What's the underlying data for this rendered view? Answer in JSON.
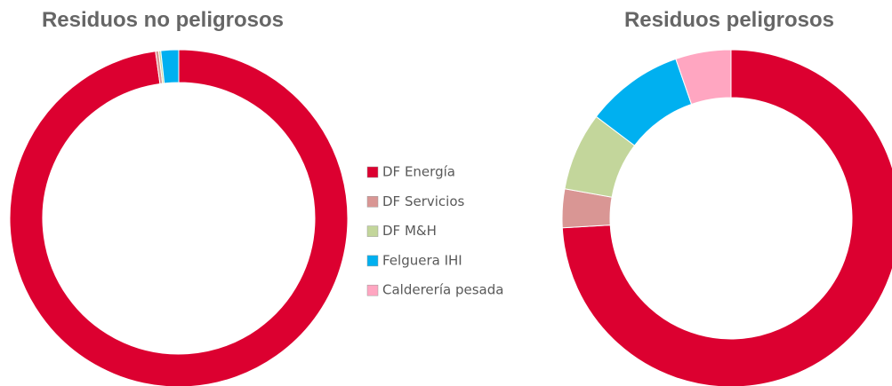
{
  "legend": {
    "categories": [
      "DF Energía",
      "DF Servicios",
      "DF M&H",
      "Felguera IHI",
      "Calderería pesada"
    ],
    "colors": [
      "#dc0030",
      "#d99694",
      "#c3d69b",
      "#00b0f0",
      "#ffa6c1"
    ]
  },
  "chart_data": [
    {
      "type": "donut",
      "title": "Residuos no peligrosos",
      "values": [
        97.8,
        0.3,
        0.2,
        1.7,
        0
      ]
    },
    {
      "type": "donut",
      "title": "Residuos peligrosos",
      "values": [
        74.1,
        3.7,
        7.5,
        9.4,
        5.3
      ]
    }
  ]
}
